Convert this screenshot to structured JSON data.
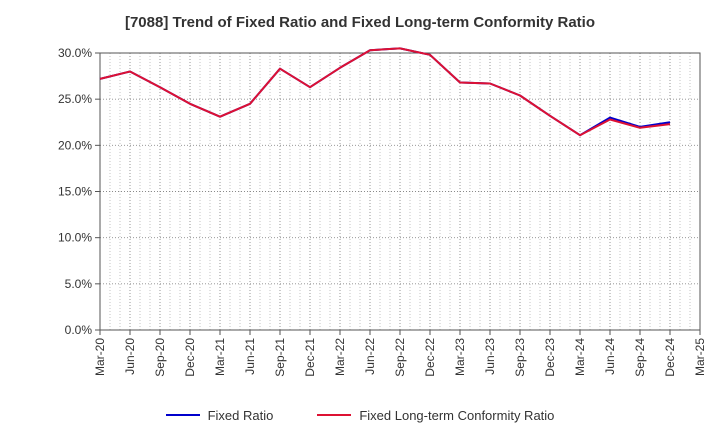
{
  "chart_data": {
    "type": "line",
    "title": "[7088]  Trend of Fixed Ratio and Fixed Long-term Conformity Ratio",
    "xlabel": "",
    "ylabel": "",
    "categories": [
      "Mar-20",
      "Jun-20",
      "Sep-20",
      "Dec-20",
      "Mar-21",
      "Jun-21",
      "Sep-21",
      "Dec-21",
      "Mar-22",
      "Jun-22",
      "Sep-22",
      "Dec-22",
      "Mar-23",
      "Jun-23",
      "Sep-23",
      "Dec-23",
      "Mar-24",
      "Jun-24",
      "Sep-24",
      "Dec-24",
      "Mar-25"
    ],
    "ylim": [
      0,
      30
    ],
    "yticks": [
      0,
      5,
      10,
      15,
      20,
      25,
      30
    ],
    "ytick_labels": [
      "0.0%",
      "5.0%",
      "10.0%",
      "15.0%",
      "20.0%",
      "25.0%",
      "30.0%"
    ],
    "grid": true,
    "legend_position": "bottom",
    "series": [
      {
        "name": "Fixed Ratio",
        "color": "#0000cc",
        "values": [
          27.2,
          28.0,
          26.3,
          24.5,
          23.1,
          24.5,
          28.3,
          26.3,
          28.4,
          30.3,
          30.5,
          29.8,
          26.8,
          26.7,
          25.4,
          23.2,
          21.1,
          23.0,
          22.0,
          22.5,
          null
        ]
      },
      {
        "name": "Fixed Long-term Conformity Ratio",
        "color": "#dd1133",
        "values": [
          27.2,
          28.0,
          26.3,
          24.5,
          23.1,
          24.5,
          28.3,
          26.3,
          28.4,
          30.3,
          30.5,
          29.8,
          26.8,
          26.7,
          25.4,
          23.2,
          21.1,
          22.8,
          21.9,
          22.3,
          null
        ]
      }
    ]
  }
}
